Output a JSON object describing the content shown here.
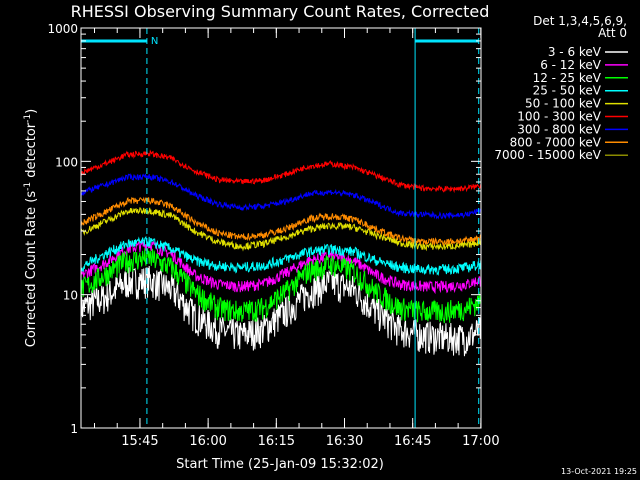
{
  "chart_data": {
    "type": "line",
    "title": "RHESSI Observing Summary Count Rates, Corrected",
    "xlabel": "Start Time (25-Jan-09 15:32:02)",
    "ylabel_main": "Corrected Count Rate (s",
    "ylabel_sup1": "-1",
    "ylabel_mid": " detector",
    "ylabel_sup2": "-1",
    "ylabel_end": ")",
    "y_scale": "log",
    "ylim": [
      1,
      1000
    ],
    "xlim_minutes": [
      0,
      88
    ],
    "y_ticks": [
      {
        "label": "1000",
        "value": 1000
      },
      {
        "label": "100",
        "value": 100
      },
      {
        "label": "10",
        "value": 10
      },
      {
        "label": "1",
        "value": 1
      }
    ],
    "x_ticks": [
      {
        "label": "15:45",
        "minute": 12.97
      },
      {
        "label": "16:00",
        "minute": 27.97
      },
      {
        "label": "16:15",
        "minute": 42.97
      },
      {
        "label": "16:30",
        "minute": 57.97
      },
      {
        "label": "16:45",
        "minute": 72.97
      },
      {
        "label": "17:00",
        "minute": 87.97
      }
    ],
    "legend_header": [
      "Det 1,3,4,5,6,9,",
      "Att 0"
    ],
    "legend_placement": "right",
    "footer": "13-Oct-2021 19:25",
    "marker_label": "N",
    "markers": {
      "color": "#00e5ff",
      "solid_lines_minutes": [
        0,
        73.5
      ],
      "dashed_lines_minutes": [
        14.5,
        87.5
      ],
      "bars": [
        [
          0,
          14.5
        ],
        [
          73.5,
          87.5
        ]
      ]
    },
    "x": [
      0,
      5,
      10,
      15,
      20,
      25,
      30,
      35,
      40,
      45,
      50,
      55,
      60,
      65,
      70,
      75,
      80,
      85,
      88
    ],
    "series": [
      {
        "name": "3 - 6 keV",
        "color": "#ffffff",
        "values": [
          8,
          9.5,
          12.5,
          13,
          11,
          7,
          5.5,
          5,
          5.5,
          7.5,
          10.5,
          12.5,
          11,
          7.5,
          5.5,
          5,
          4.8,
          4.8,
          5.5
        ]
      },
      {
        "name": "6 - 12 keV",
        "color": "#ff00ff",
        "values": [
          14,
          17,
          22,
          24,
          20,
          14,
          12,
          11.5,
          12,
          14.5,
          18,
          19.5,
          18,
          14,
          12,
          11.5,
          11.5,
          12,
          13
        ]
      },
      {
        "name": "12 - 25 keV",
        "color": "#00ff00",
        "values": [
          11,
          14,
          18,
          19,
          16,
          10.5,
          8,
          7.5,
          8,
          10.5,
          15,
          17,
          15,
          10.5,
          8,
          7.5,
          7.5,
          8,
          9
        ]
      },
      {
        "name": "25 - 50 keV",
        "color": "#00ffff",
        "values": [
          16,
          20,
          24,
          25,
          22,
          18,
          16.5,
          16,
          16.5,
          18.5,
          21,
          22,
          21,
          18,
          16,
          15.5,
          15.5,
          16,
          17
        ]
      },
      {
        "name": "50 - 100 keV",
        "color": "#e0e000",
        "values": [
          29,
          35,
          42,
          43,
          39,
          30,
          25,
          23,
          24,
          27,
          31,
          33,
          32,
          28,
          24.5,
          23,
          23,
          23.5,
          25
        ]
      },
      {
        "name": "100 - 300 keV",
        "color": "#ff0000",
        "values": [
          82,
          95,
          112,
          115,
          105,
          85,
          73,
          70,
          72,
          80,
          92,
          96,
          90,
          78,
          67,
          63,
          62,
          63,
          66
        ]
      },
      {
        "name": "300 - 800 keV",
        "color": "#0000ff",
        "values": [
          58,
          66,
          76,
          77,
          70,
          56,
          48,
          45,
          46,
          50,
          57,
          59,
          56,
          48,
          41,
          40,
          39,
          40,
          43
        ]
      },
      {
        "name": "800 - 7000 keV",
        "color": "#ff8c00",
        "values": [
          34,
          41,
          50,
          51,
          46,
          35,
          29,
          27,
          28,
          31,
          37,
          39,
          37,
          31,
          26.5,
          25,
          25,
          25.5,
          27
        ]
      },
      {
        "name": "7000 - 15000 keV",
        "color": "#8b8b00",
        "values": [
          null,
          null,
          null,
          null,
          null,
          null,
          null,
          null,
          null,
          null,
          null,
          null,
          null,
          null,
          null,
          null,
          null,
          null,
          null
        ]
      }
    ]
  }
}
